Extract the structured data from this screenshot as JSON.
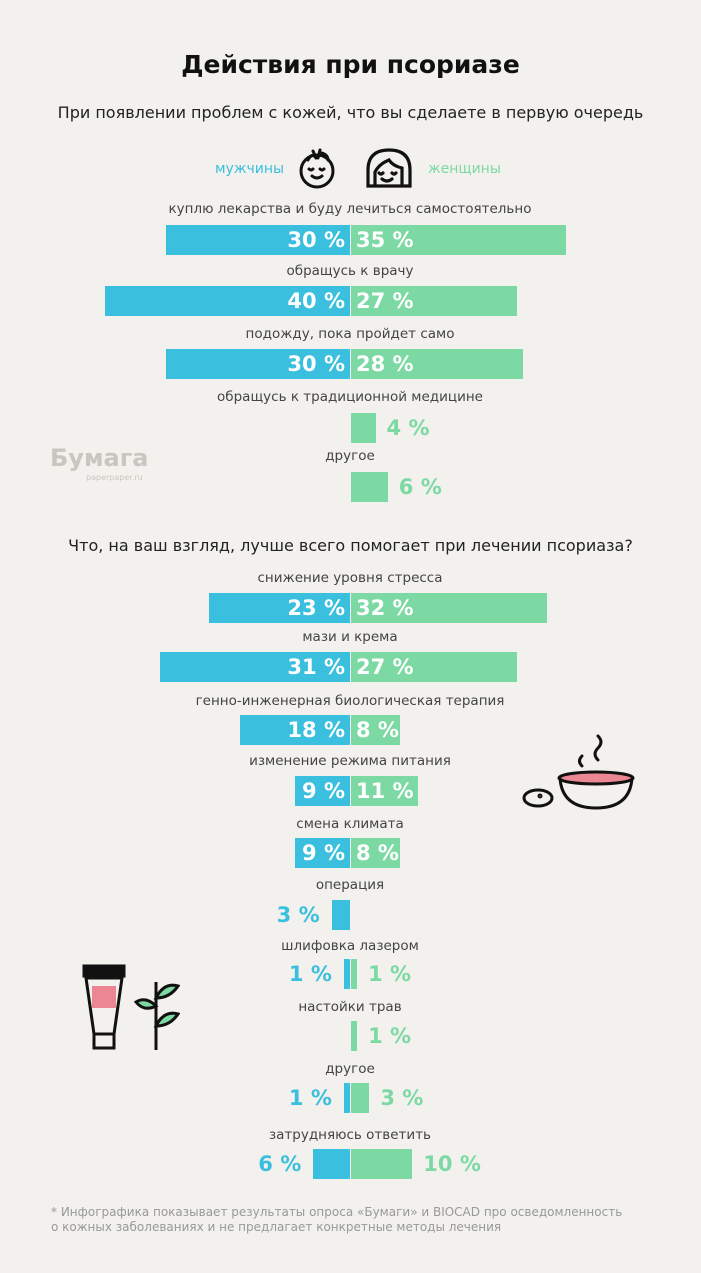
{
  "title": "Действия при псориазе",
  "legend": {
    "men": "мужчины",
    "women": "женщины"
  },
  "colors": {
    "men": "#3bbfdf",
    "women": "#7dd9a4"
  },
  "logo": {
    "name": "Бумага",
    "site": "paperpaper.ru"
  },
  "footnote": [
    "* Инфографика показывает результаты опроса «Бумаги» и BIOCAD про осведомленность",
    "о кожных заболеваниях и не предлагает конкретные методы лечения"
  ],
  "chart_data": [
    {
      "type": "bar",
      "title": "При появлении проблем с кожей, что вы сделаете в первую очередь",
      "unit": "%",
      "categories": [
        "куплю лекарства и буду лечиться самостоятельно",
        "обращусь к врачу",
        "подожду, пока пройдет само",
        "обращусь к традиционной медицине",
        "другое"
      ],
      "series": [
        {
          "name": "мужчины",
          "values": [
            30,
            40,
            30,
            null,
            null
          ]
        },
        {
          "name": "женщины",
          "values": [
            35,
            27,
            28,
            4,
            6
          ]
        }
      ]
    },
    {
      "type": "bar",
      "title": "Что, на ваш взгляд, лучше всего помогает при лечении псориаза?",
      "unit": "%",
      "categories": [
        "снижение уровня стресса",
        "мази и крема",
        "генно-инженерная биологическая терапия",
        "изменение режима питания",
        "смена климата",
        "операция",
        "шлифовка лазером",
        "настойки трав",
        "другое",
        "затрудняюсь ответить"
      ],
      "series": [
        {
          "name": "мужчины",
          "values": [
            23,
            31,
            18,
            9,
            9,
            3,
            1,
            null,
            1,
            6
          ]
        },
        {
          "name": "женщины",
          "values": [
            32,
            27,
            8,
            11,
            8,
            null,
            1,
            1,
            3,
            10
          ]
        }
      ]
    }
  ]
}
